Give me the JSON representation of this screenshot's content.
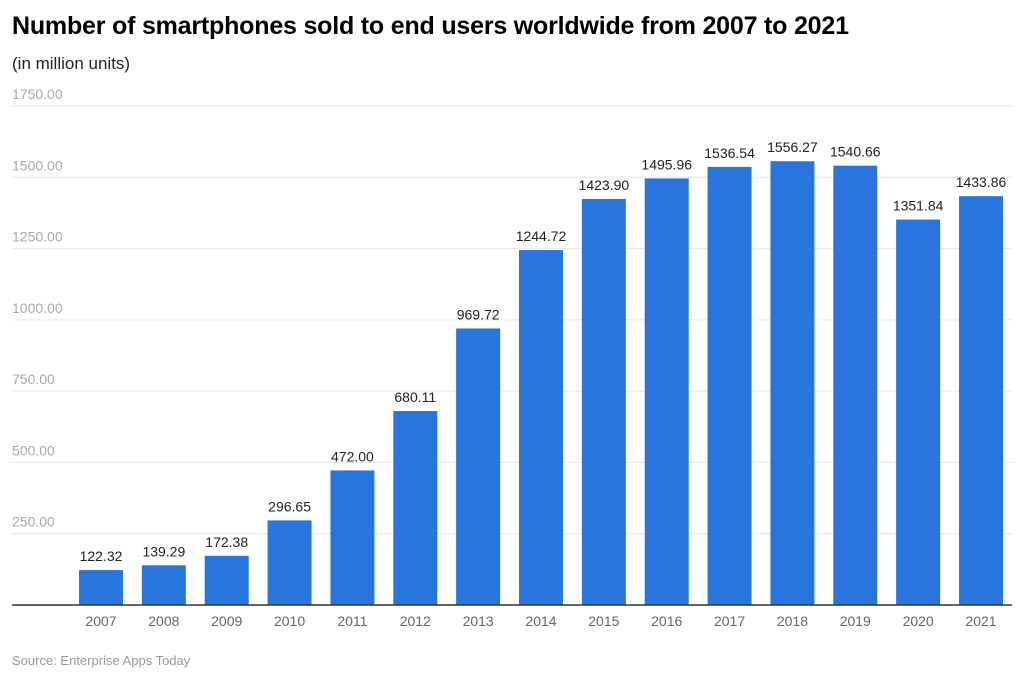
{
  "chart_data": {
    "type": "bar",
    "title": "Number of smartphones sold to end users worldwide from 2007 to 2021",
    "subtitle": "(in million units)",
    "xlabel": "",
    "ylabel": "",
    "categories": [
      "2007",
      "2008",
      "2009",
      "2010",
      "2011",
      "2012",
      "2013",
      "2014",
      "2015",
      "2016",
      "2017",
      "2018",
      "2019",
      "2020",
      "2021"
    ],
    "values": [
      122.32,
      139.29,
      172.38,
      296.65,
      472.0,
      680.11,
      969.72,
      1244.72,
      1423.9,
      1495.96,
      1536.54,
      1556.27,
      1540.66,
      1351.84,
      1433.86
    ],
    "value_labels": [
      "122.32",
      "139.29",
      "172.38",
      "296.65",
      "472.00",
      "680.11",
      "969.72",
      "1244.72",
      "1423.90",
      "1495.96",
      "1536.54",
      "1556.27",
      "1540.66",
      "1351.84",
      "1433.86"
    ],
    "ylim": [
      0,
      1750
    ],
    "yticks": [
      250,
      500,
      750,
      1000,
      1250,
      1500,
      1750
    ],
    "ytick_labels": [
      "250.00",
      "500.00",
      "750.00",
      "1000.00",
      "1250.00",
      "1500.00",
      "1750.00"
    ],
    "grid": true,
    "legend": "none",
    "bar_color": "#2876dd",
    "source": "Source: Enterprise Apps Today"
  }
}
